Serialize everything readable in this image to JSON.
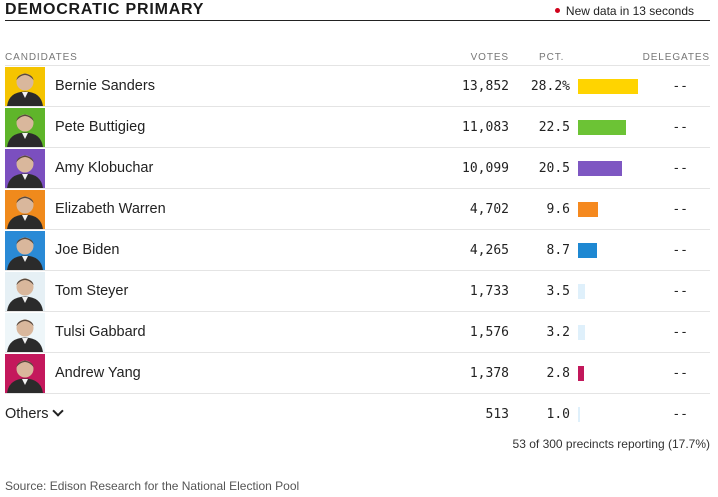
{
  "header": {
    "title": "DEMOCRATIC PRIMARY",
    "live_text": "New data in 13 seconds",
    "live_dot_color": "#d0021b"
  },
  "columns": {
    "candidates": "CANDIDATES",
    "votes": "VOTES",
    "pct": "PCT.",
    "delegates": "DELEGATES"
  },
  "candidates": [
    {
      "name": "Bernie Sanders",
      "votes": "13,852",
      "pct": "28.2%",
      "pct_value": 28.2,
      "delegates": "--",
      "color": "#ffd400",
      "photo_bg": "#f5c400",
      "icon": "portrait-icon"
    },
    {
      "name": "Pete Buttigieg",
      "votes": "11,083",
      "pct": "22.5",
      "pct_value": 22.5,
      "delegates": "--",
      "color": "#6cc335",
      "photo_bg": "#5fb52a",
      "icon": "portrait-icon"
    },
    {
      "name": "Amy Klobuchar",
      "votes": "10,099",
      "pct": "20.5",
      "pct_value": 20.5,
      "delegates": "--",
      "color": "#7e57c2",
      "photo_bg": "#7b4fbf",
      "icon": "portrait-icon"
    },
    {
      "name": "Elizabeth Warren",
      "votes": "4,702",
      "pct": "9.6",
      "pct_value": 9.6,
      "delegates": "--",
      "color": "#f5891f",
      "photo_bg": "#f08a1c",
      "icon": "portrait-icon"
    },
    {
      "name": "Joe Biden",
      "votes": "4,265",
      "pct": "8.7",
      "pct_value": 8.7,
      "delegates": "--",
      "color": "#1e88d2",
      "photo_bg": "#2a8ad6",
      "icon": "portrait-icon"
    },
    {
      "name": "Tom Steyer",
      "votes": "1,733",
      "pct": "3.5",
      "pct_value": 3.5,
      "delegates": "--",
      "color": "#dff0fb",
      "photo_bg": "#e6f0f5",
      "icon": "portrait-icon"
    },
    {
      "name": "Tulsi Gabbard",
      "votes": "1,576",
      "pct": "3.2",
      "pct_value": 3.2,
      "delegates": "--",
      "color": "#dff0fb",
      "photo_bg": "#eef6f9",
      "icon": "portrait-icon"
    },
    {
      "name": "Andrew Yang",
      "votes": "1,378",
      "pct": "2.8",
      "pct_value": 2.8,
      "delegates": "--",
      "color": "#c2185b",
      "photo_bg": "#c4185c",
      "icon": "portrait-icon"
    }
  ],
  "others": {
    "name": "Others",
    "votes": "513",
    "pct": "1.0",
    "pct_value": 1.0,
    "delegates": "--",
    "color": "#dff0fb",
    "icon": "chevron-down-icon"
  },
  "precincts": "53 of 300 precincts reporting (17.7%)",
  "source": "Source: Edison Research for the National Election Pool"
}
